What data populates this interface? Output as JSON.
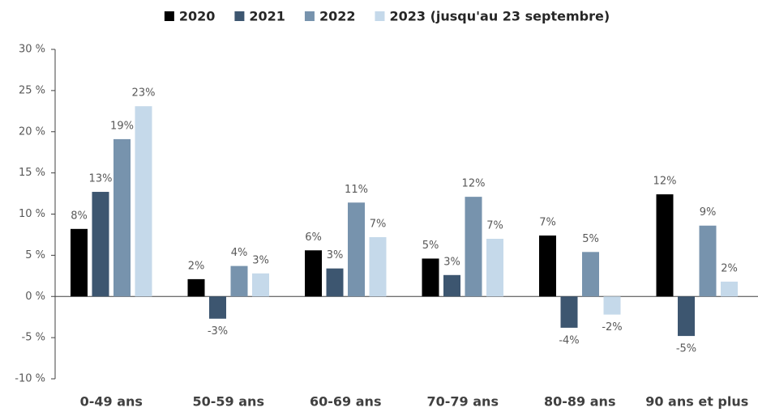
{
  "chart_data": {
    "type": "bar",
    "categories": [
      "0-49 ans",
      "50-59 ans",
      "60-69 ans",
      "70-79 ans",
      "80-89 ans",
      "90 ans et plus"
    ],
    "series": [
      {
        "name": "2020",
        "color": "#000000",
        "values": [
          8.2,
          2.1,
          5.6,
          4.6,
          7.4,
          12.4
        ],
        "value_labels": [
          "8%",
          "2%",
          "6%",
          "5%",
          "7%",
          "12%"
        ]
      },
      {
        "name": "2021",
        "color": "#3d5670",
        "values": [
          12.7,
          -2.7,
          3.4,
          2.6,
          -3.8,
          -4.8
        ],
        "value_labels": [
          "13%",
          "-3%",
          "3%",
          "3%",
          "-4%",
          "-5%"
        ]
      },
      {
        "name": "2022",
        "color": "#7793ad",
        "values": [
          19.1,
          3.7,
          11.4,
          12.1,
          5.4,
          8.6
        ],
        "value_labels": [
          "19%",
          "4%",
          "11%",
          "12%",
          "5%",
          "9%"
        ]
      },
      {
        "name": "2023 (jusqu'au 23 septembre)",
        "color": "#c5d9ea",
        "values": [
          23.1,
          2.8,
          7.2,
          7.0,
          -2.2,
          1.8
        ],
        "value_labels": [
          "23%",
          "3%",
          "7%",
          "7%",
          "-2%",
          "2%"
        ]
      }
    ],
    "ylim": [
      -10,
      30
    ],
    "yticks": [
      {
        "value": -10,
        "label": "-10 %"
      },
      {
        "value": -5,
        "label": "-5 %"
      },
      {
        "value": 0,
        "label": "0 %"
      },
      {
        "value": 5,
        "label": "5 %"
      },
      {
        "value": 10,
        "label": "10 %"
      },
      {
        "value": 15,
        "label": "15 %"
      },
      {
        "value": 20,
        "label": "20 %"
      },
      {
        "value": 25,
        "label": "25 %"
      },
      {
        "value": 30,
        "label": "30 %"
      }
    ],
    "grid": false,
    "legend": "top"
  }
}
